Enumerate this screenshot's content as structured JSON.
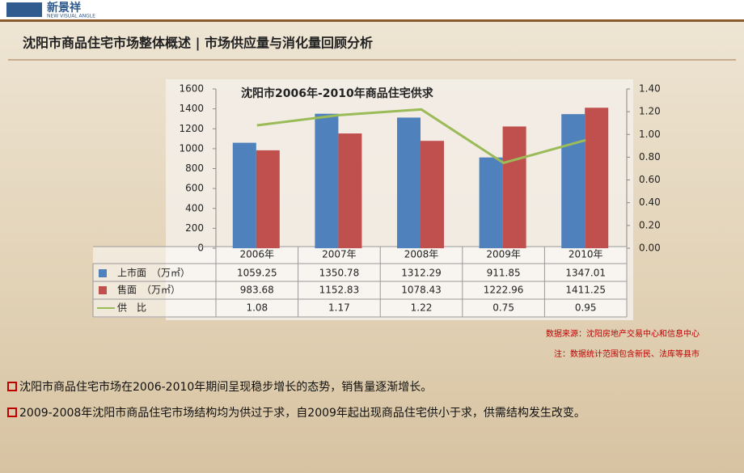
{
  "header": {
    "logo": "新景祥",
    "logo_sub": "NEW VISUAL ANGLE",
    "title": "沈阳市商品住宅市场整体概述 | 市场供应量与消化量回顾分析"
  },
  "chart_data": {
    "type": "bar",
    "title": "沈阳市2006年-2010年商品住宅供求",
    "categories": [
      "2006年",
      "2007年",
      "2008年",
      "2009年",
      "2010年"
    ],
    "series": [
      {
        "name": "上市面　（万㎡）",
        "type": "bar",
        "color": "#4f81bd",
        "values": [
          1059.25,
          1350.78,
          1312.29,
          911.85,
          1347.01
        ]
      },
      {
        "name": "售面　（万㎡）",
        "type": "bar",
        "color": "#c0504d",
        "values": [
          983.68,
          1152.83,
          1078.43,
          1222.96,
          1411.25
        ]
      },
      {
        "name": "供　比",
        "type": "line",
        "axis": "y2",
        "color": "#9bbb59",
        "values": [
          1.08,
          1.17,
          1.22,
          0.75,
          0.95
        ]
      }
    ],
    "ylim": [
      0,
      1600
    ],
    "yticks": [
      0,
      200,
      400,
      600,
      800,
      1000,
      1200,
      1400,
      1600
    ],
    "y2lim": [
      0,
      1.4
    ],
    "y2ticks": [
      {
        "value": 0,
        "label": "0.00"
      },
      {
        "value": 0.2,
        "label": "0.20"
      },
      {
        "value": 0.4,
        "label": "0.40"
      },
      {
        "value": 0.6,
        "label": "0.60"
      },
      {
        "value": 0.8,
        "label": "0.80"
      },
      {
        "value": 1,
        "label": "1.00"
      },
      {
        "value": 1.2,
        "label": "1.20"
      },
      {
        "value": 1.4,
        "label": "1.40"
      }
    ],
    "source": "数据来源：沈阳房地产交易中心和信息中心",
    "note": "注：数据统计范围包含新民、法库等县市"
  },
  "bullets": [
    "沈阳市商品住宅市场在2006-2010年期间呈现稳步增长的态势，销售量逐渐增长。",
    "2009-2008年沈阳市商品住宅市场结构均为供过于求，自2009年起出现商品住宅供小于求，供需结构发生改变。"
  ]
}
